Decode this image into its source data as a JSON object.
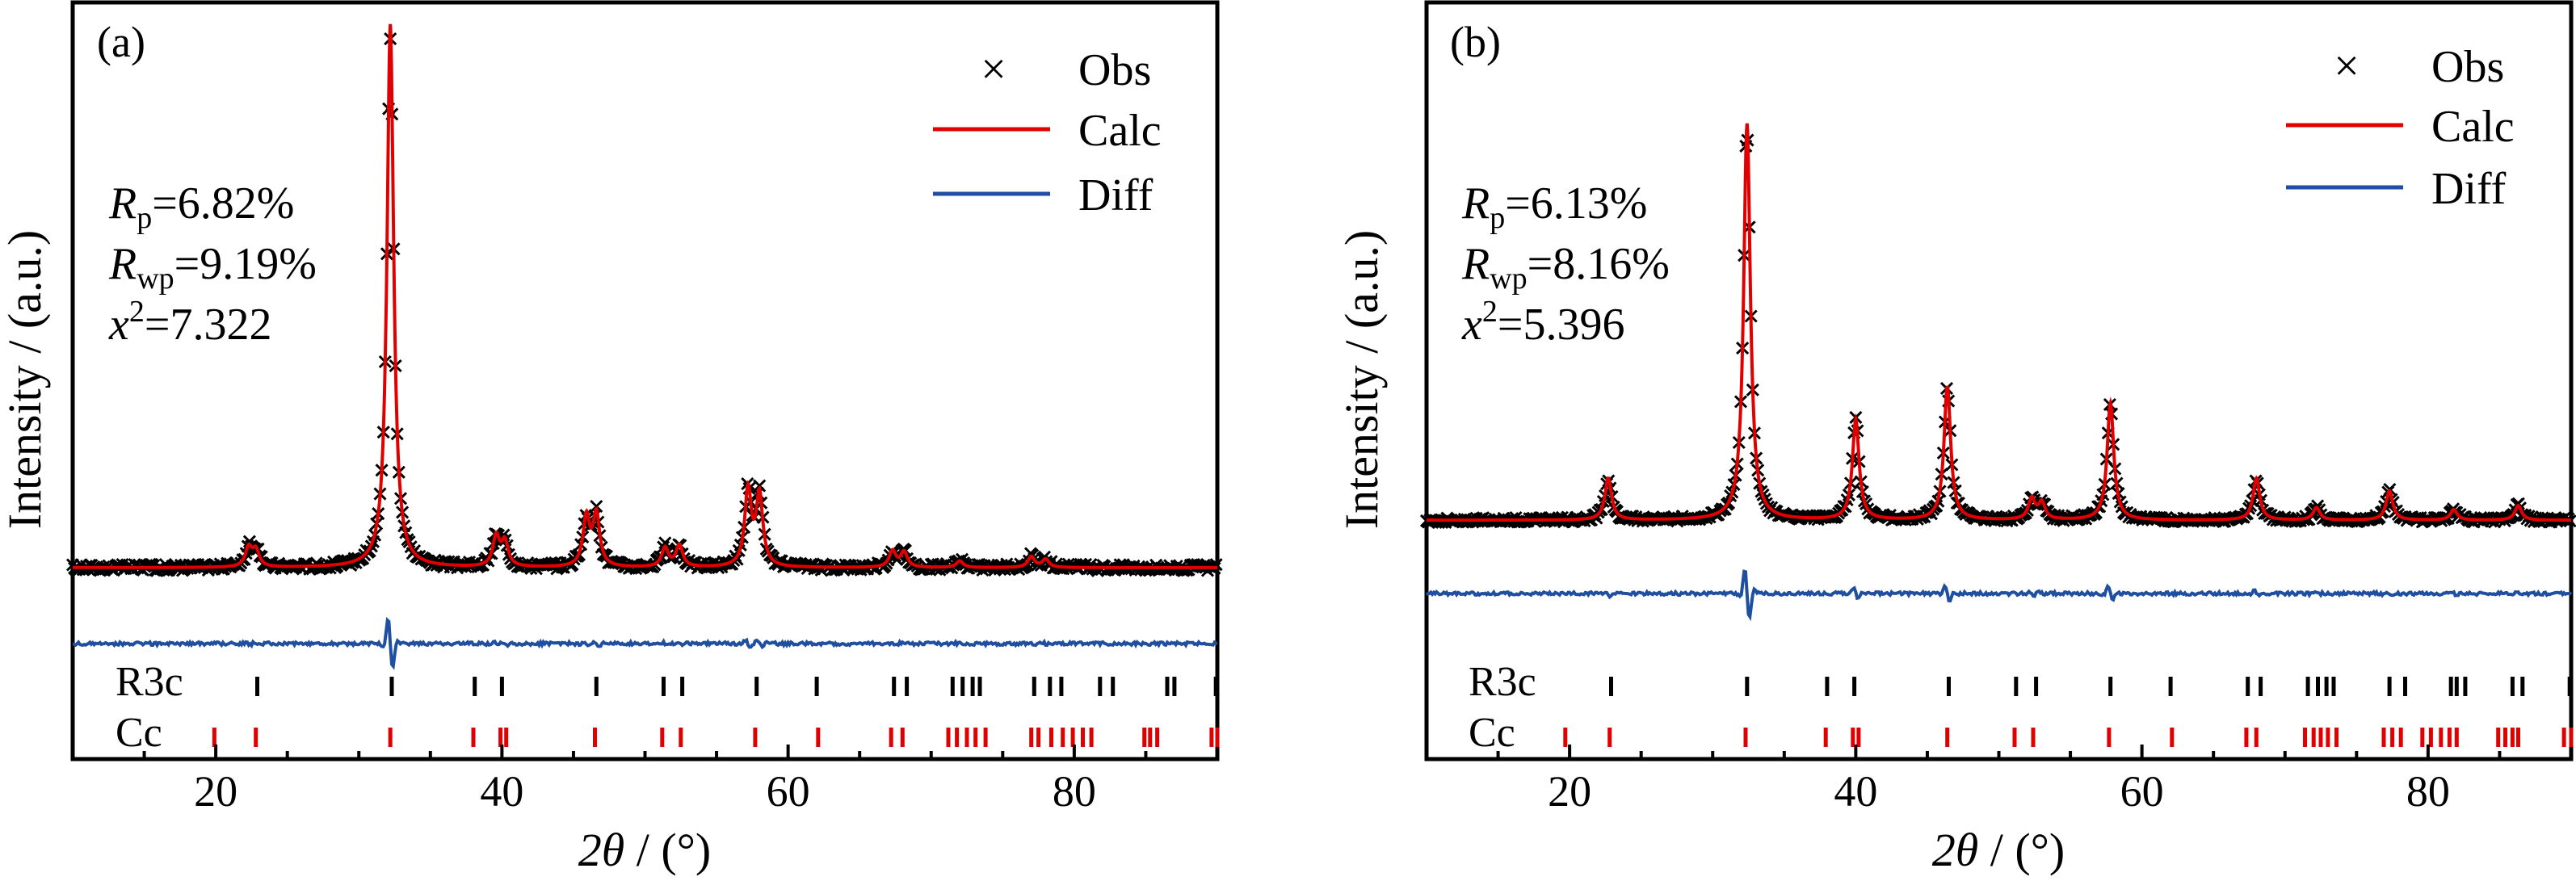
{
  "chart_data": [
    {
      "panel": "(a)",
      "type": "line",
      "xlabel_symbol": "2θ",
      "xlabel_unit": "/ (°)",
      "ylabel": "Intensity / (a.u.)",
      "xlim": [
        10,
        90
      ],
      "xticks": [
        20,
        40,
        60,
        80
      ],
      "legend": [
        "Obs",
        "Calc",
        "Diff"
      ],
      "legend_position": "top-right",
      "stats": [
        {
          "sym": "R",
          "sub": "p",
          "value": "=6.82%"
        },
        {
          "sym": "R",
          "sub": "wp",
          "value": "=9.19%"
        },
        {
          "sym": "x",
          "sup": "2",
          "value": "=7.322"
        }
      ],
      "background": 0.0,
      "peaks": [
        {
          "x": 22.3,
          "h": 0.035
        },
        {
          "x": 22.8,
          "h": 0.03
        },
        {
          "x": 32.2,
          "h": 1.0
        },
        {
          "x": 39.6,
          "h": 0.055
        },
        {
          "x": 40.2,
          "h": 0.045
        },
        {
          "x": 45.9,
          "h": 0.09
        },
        {
          "x": 46.6,
          "h": 0.095
        },
        {
          "x": 51.4,
          "h": 0.035
        },
        {
          "x": 52.4,
          "h": 0.04
        },
        {
          "x": 57.2,
          "h": 0.14
        },
        {
          "x": 58.0,
          "h": 0.13
        },
        {
          "x": 67.3,
          "h": 0.03
        },
        {
          "x": 68.1,
          "h": 0.028
        },
        {
          "x": 72.0,
          "h": 0.012
        },
        {
          "x": 77.0,
          "h": 0.02
        },
        {
          "x": 78.0,
          "h": 0.015
        }
      ],
      "phases": [
        {
          "name": "R3c",
          "color": "#000000",
          "positions": [
            22.9,
            32.3,
            38.1,
            40.0,
            46.6,
            51.3,
            52.6,
            57.8,
            62.0,
            67.4,
            68.3,
            71.5,
            72.2,
            72.9,
            73.4,
            77.2,
            78.3,
            79.1,
            81.8,
            82.7,
            86.5,
            87.0,
            89.9
          ]
        },
        {
          "name": "Cc",
          "color": "#e00000",
          "positions": [
            19.9,
            22.8,
            32.2,
            38.0,
            39.9,
            40.3,
            46.5,
            51.2,
            52.5,
            57.7,
            62.1,
            67.2,
            68.0,
            71.2,
            71.8,
            72.5,
            73.1,
            73.8,
            77.0,
            77.5,
            78.4,
            79.2,
            79.9,
            80.6,
            81.2,
            84.9,
            85.3,
            85.8,
            89.6,
            90.0
          ]
        }
      ]
    },
    {
      "panel": "(b)",
      "type": "line",
      "xlabel_symbol": "2θ",
      "xlabel_unit": "/ (°)",
      "ylabel": "Intensity / (a.u.)",
      "xlim": [
        10,
        90
      ],
      "xticks": [
        20,
        40,
        60,
        80
      ],
      "legend": [
        "Obs",
        "Calc",
        "Diff"
      ],
      "legend_position": "top-right",
      "stats": [
        {
          "sym": "R",
          "sub": "p",
          "value": "=6.13%"
        },
        {
          "sym": "R",
          "sub": "wp",
          "value": "=8.16%"
        },
        {
          "sym": "x",
          "sup": "2",
          "value": "=5.396"
        }
      ],
      "background": 0.015,
      "peaks": [
        {
          "x": 22.7,
          "h": 0.1
        },
        {
          "x": 32.4,
          "h": 0.95
        },
        {
          "x": 40.0,
          "h": 0.24
        },
        {
          "x": 46.4,
          "h": 0.32
        },
        {
          "x": 52.3,
          "h": 0.05
        },
        {
          "x": 53.0,
          "h": 0.04
        },
        {
          "x": 57.8,
          "h": 0.28
        },
        {
          "x": 68.0,
          "h": 0.1
        },
        {
          "x": 72.2,
          "h": 0.03
        },
        {
          "x": 77.3,
          "h": 0.07
        },
        {
          "x": 81.8,
          "h": 0.025
        },
        {
          "x": 86.3,
          "h": 0.035
        }
      ],
      "phases": [
        {
          "name": "R3c",
          "color": "#000000",
          "positions": [
            22.9,
            32.4,
            38.0,
            39.9,
            46.5,
            51.2,
            52.6,
            57.8,
            62.0,
            67.4,
            68.3,
            71.6,
            72.3,
            72.9,
            73.4,
            77.3,
            78.4,
            81.6,
            82.0,
            82.6,
            85.9,
            86.6,
            89.9
          ]
        },
        {
          "name": "Cc",
          "color": "#e00000",
          "positions": [
            19.7,
            22.8,
            32.3,
            37.9,
            39.8,
            40.2,
            46.4,
            51.1,
            52.4,
            57.7,
            62.1,
            67.3,
            68.0,
            71.4,
            72.0,
            72.5,
            73.0,
            73.6,
            76.9,
            77.5,
            78.1,
            79.6,
            80.2,
            80.9,
            81.5,
            82.0,
            84.9,
            85.4,
            85.9,
            86.3,
            89.5,
            90.0
          ]
        }
      ]
    }
  ]
}
